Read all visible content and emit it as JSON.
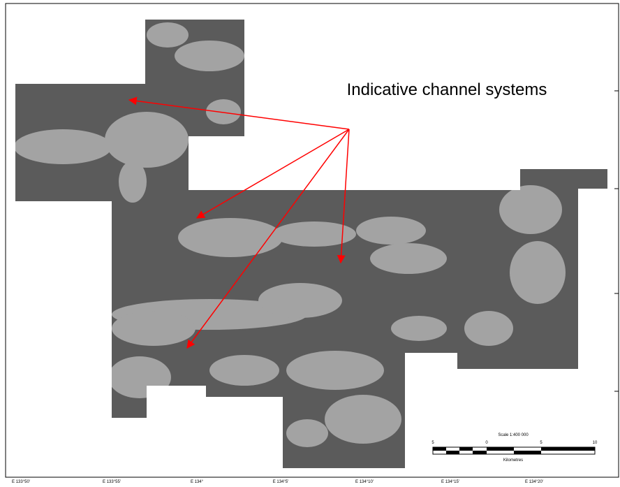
{
  "map": {
    "annotation": "Indicative channel systems",
    "x_labels": [
      "E 133°50'",
      "E 133°55'",
      "E 134°",
      "E 134°5'",
      "E 134°10'",
      "E 134°15'",
      "E 134°20'"
    ],
    "scale_bar": {
      "title": "Scale 1:400 000",
      "labels": [
        "5",
        "0",
        "5",
        "10"
      ],
      "unit": "Kilometres"
    }
  }
}
